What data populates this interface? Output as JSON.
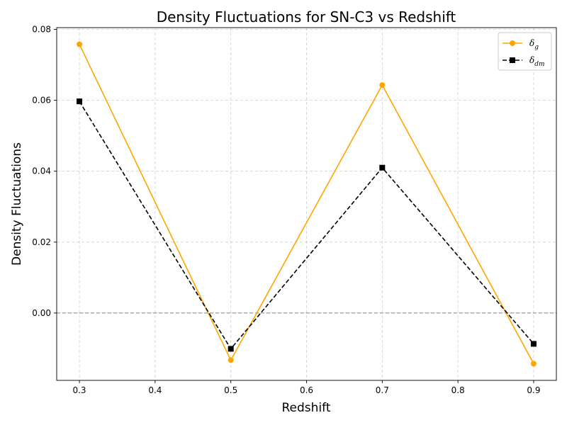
{
  "chart_data": {
    "type": "line",
    "title": "Density Fluctuations for SN-C3 vs Redshift",
    "xlabel": "Redshift",
    "ylabel": "Density Fluctuations",
    "x": [
      0.3,
      0.5,
      0.7,
      0.9
    ],
    "xlim": [
      0.27,
      0.93
    ],
    "ylim": [
      -0.019,
      0.0805
    ],
    "xticks": [
      0.3,
      0.4,
      0.5,
      0.6,
      0.7,
      0.8,
      0.9
    ],
    "xtick_labels": [
      "0.3",
      "0.4",
      "0.5",
      "0.6",
      "0.7",
      "0.8",
      "0.9"
    ],
    "yticks": [
      0.0,
      0.02,
      0.04,
      0.06,
      0.08
    ],
    "ytick_labels": [
      "0.00",
      "0.02",
      "0.04",
      "0.06",
      "0.08"
    ],
    "grid": true,
    "reference_line": 0.0,
    "legend_placement": "top-right",
    "series": [
      {
        "name_main": "δ",
        "name_sub": "g",
        "values": [
          0.0758,
          -0.0133,
          0.0643,
          -0.0143
        ],
        "color": "#FFA500",
        "line_style": "solid",
        "marker": "circle"
      },
      {
        "name_main": "δ",
        "name_sub": "dm",
        "values": [
          0.0597,
          -0.0101,
          0.041,
          -0.0087
        ],
        "color": "#000000",
        "line_style": "dashed",
        "marker": "square"
      }
    ]
  }
}
